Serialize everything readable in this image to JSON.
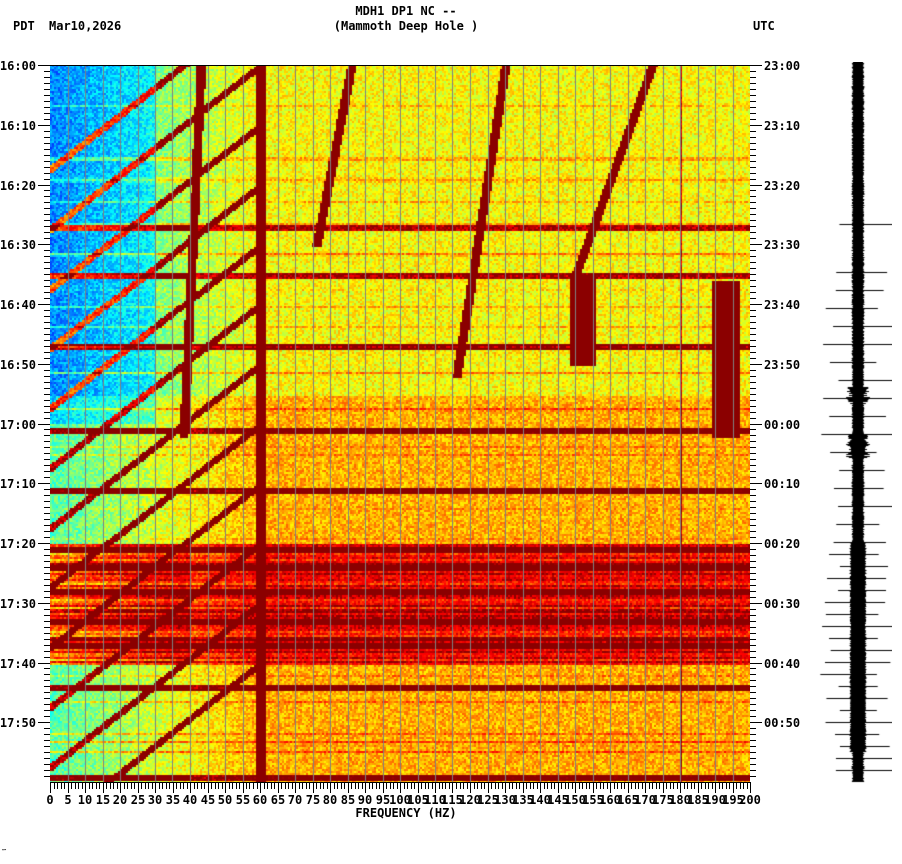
{
  "header": {
    "title_line1": "MDH1 DP1 NC --",
    "title_line2": "(Mammoth Deep Hole )",
    "left_timezone": "PDT",
    "date": "Mar10,2026",
    "right_timezone": "UTC"
  },
  "footer": {
    "corner_mark": "‴"
  },
  "chart_data": {
    "type": "heatmap",
    "title": "MDH1 DP1 NC -- (Mammoth Deep Hole )",
    "subtitle": "Mar10,2026",
    "xlabel": "FREQUENCY (HZ)",
    "ylabel_left": "PDT",
    "ylabel_right": "UTC",
    "xlim": [
      0,
      200
    ],
    "x_ticks": [
      0,
      5,
      10,
      15,
      20,
      25,
      30,
      35,
      40,
      45,
      50,
      55,
      60,
      65,
      70,
      75,
      80,
      85,
      90,
      95,
      100,
      105,
      110,
      115,
      120,
      125,
      130,
      135,
      140,
      145,
      150,
      155,
      160,
      165,
      170,
      175,
      180,
      185,
      190,
      195,
      200
    ],
    "x_minor_tick_step": 1,
    "x_gridline_step": 5,
    "time_span_minutes": 120,
    "y_ticks_left": [
      "16:00",
      "16:10",
      "16:20",
      "16:30",
      "16:40",
      "16:50",
      "17:00",
      "17:10",
      "17:20",
      "17:30",
      "17:40",
      "17:50"
    ],
    "y_ticks_right": [
      "23:00",
      "23:10",
      "23:20",
      "23:30",
      "23:40",
      "23:50",
      "00:00",
      "00:10",
      "00:20",
      "00:30",
      "00:40",
      "00:50"
    ],
    "y_minor_tick_step_minutes": 1,
    "colormap": "jet",
    "colors": {
      "low": "#0050ff",
      "mid": "#00ffff",
      "high": "#ffff00",
      "peak": "#8b0000",
      "grid": "#808080"
    },
    "persistent_lines_hz": [
      60,
      180
    ],
    "notable_features": [
      {
        "name": "line-60hz",
        "type": "constant",
        "freq_hz": 60,
        "t_start_min": 0,
        "t_end_min": 120
      },
      {
        "name": "glide-a",
        "type": "drift",
        "freq_start_hz": 43,
        "freq_end_hz": 38,
        "t_start_min": 0,
        "t_end_min": 62
      },
      {
        "name": "glide-b",
        "type": "drift",
        "freq_start_hz": 86,
        "freq_end_hz": 76,
        "t_start_min": 0,
        "t_end_min": 30
      },
      {
        "name": "glide-c",
        "type": "drift",
        "freq_start_hz": 130,
        "freq_end_hz": 116,
        "t_start_min": 0,
        "t_end_min": 52
      },
      {
        "name": "glide-d",
        "type": "drift",
        "freq_start_hz": 172,
        "freq_end_hz": 150,
        "t_start_min": 0,
        "t_end_min": 35
      },
      {
        "name": "burst-150hz",
        "type": "patch",
        "freq_hz": 152,
        "t_start_min": 35,
        "t_end_min": 50
      },
      {
        "name": "burst-190hz",
        "type": "patch",
        "freq_hz": 193,
        "t_start_min": 36,
        "t_end_min": 62
      }
    ],
    "broadband_events_min": [
      27,
      35,
      47,
      61,
      71,
      81,
      84,
      88,
      93,
      97,
      104,
      119
    ],
    "noisy_period_min": [
      80,
      100
    ]
  },
  "seismogram": {
    "label": "waveform trace",
    "spikes_minutes": [
      27,
      35,
      38,
      41,
      44,
      47,
      50,
      53,
      56,
      59,
      62,
      65,
      68,
      71,
      74,
      77,
      80,
      82,
      84,
      86,
      88,
      90,
      92,
      94,
      96,
      98,
      100,
      102,
      104,
      106,
      108,
      110,
      112,
      114,
      116,
      118
    ]
  }
}
